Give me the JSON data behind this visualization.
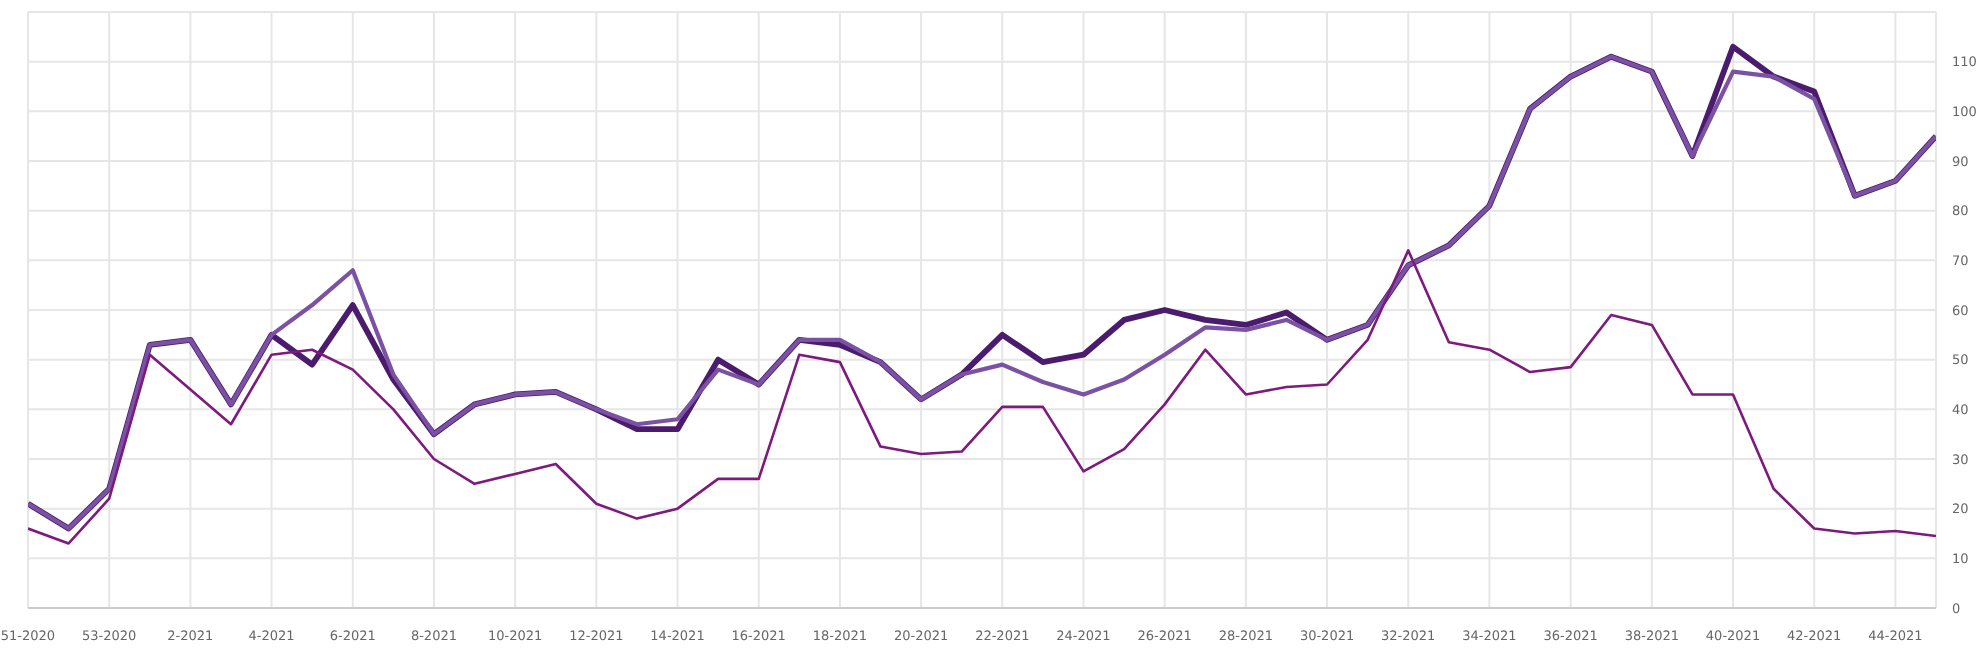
{
  "chart_data": {
    "type": "line",
    "categories": [
      "51-2020",
      null,
      "53-2020",
      null,
      "2-2021",
      null,
      "4-2021",
      null,
      "6-2021",
      null,
      "8-2021",
      null,
      "10-2021",
      null,
      "12-2021",
      null,
      "14-2021",
      null,
      "16-2021",
      null,
      "18-2021",
      null,
      "20-2021",
      null,
      "22-2021",
      null,
      "24-2021",
      null,
      "26-2021",
      null,
      "28-2021",
      null,
      "30-2021",
      null,
      "32-2021",
      null,
      "34-2021",
      null,
      "36-2021",
      null,
      "38-2021",
      null,
      "40-2021",
      null,
      "42-2021",
      null,
      "44-2021",
      null
    ],
    "series": [
      {
        "color": "#4b1c6e",
        "values": [
          21,
          16,
          24,
          53,
          54,
          41,
          55,
          49,
          61,
          46,
          35,
          41,
          43,
          43.5,
          40,
          36,
          36,
          50,
          45,
          54,
          53,
          49.5,
          42,
          47,
          55,
          49.5,
          51,
          58,
          60,
          58,
          57,
          59.5,
          54,
          57,
          69,
          73,
          81,
          100.5,
          107,
          111,
          108,
          91,
          113,
          107,
          104,
          83,
          86,
          95
        ]
      },
      {
        "color": "#7b52a3",
        "values": [
          21,
          16,
          24,
          53,
          54,
          41,
          55,
          61,
          68,
          47,
          35,
          41,
          43,
          43.5,
          40,
          37,
          38,
          48,
          45,
          54,
          54,
          49.5,
          42,
          47,
          49,
          45.5,
          43,
          46,
          51,
          56.5,
          56,
          58,
          54,
          57,
          69,
          73,
          81,
          100.5,
          107,
          111,
          108,
          91,
          108,
          107,
          102.5,
          83,
          86,
          95
        ]
      },
      {
        "color": "#7d1a7d",
        "values": [
          16,
          13,
          22,
          51,
          44,
          37,
          51,
          52,
          48,
          40,
          30,
          25,
          27,
          29,
          21,
          18,
          20,
          26,
          26,
          51,
          49.5,
          32.5,
          31,
          31.5,
          40.5,
          40.5,
          27.5,
          32,
          41,
          52,
          43,
          44.5,
          45,
          54,
          72,
          53.5,
          52,
          47.5,
          48.5,
          59,
          57,
          43,
          43,
          24,
          16,
          15,
          15.5,
          14.5
        ]
      }
    ],
    "ylim": [
      0,
      120
    ],
    "yticks": [
      0,
      10,
      20,
      30,
      40,
      50,
      60,
      70,
      80,
      90,
      100,
      110,
      {
        "value": 120,
        "label": null
      }
    ],
    "grid": true,
    "marker": "none",
    "line_style": "solid"
  }
}
